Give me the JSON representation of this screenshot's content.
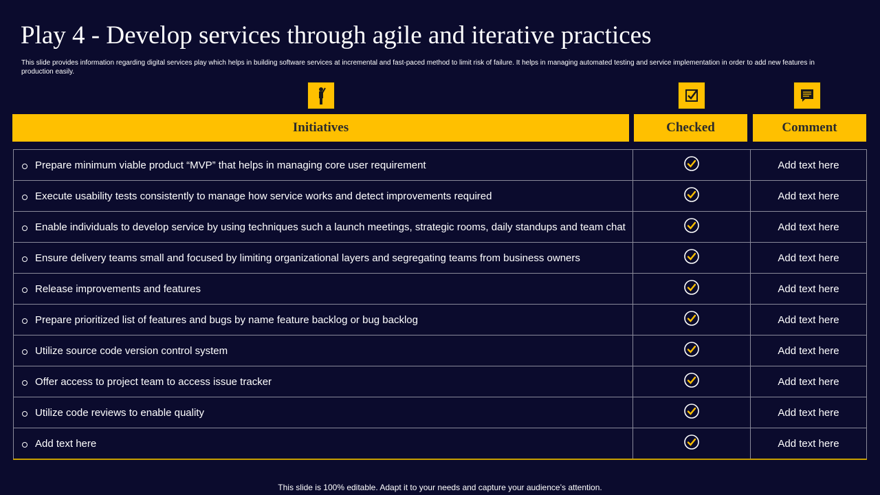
{
  "header": {
    "title": "Play 4 - Develop services through agile and iterative practices",
    "subtitle": "This slide provides information regarding digital services play which helps in building software services at incremental and fast-paced method to limit risk of failure. It helps in managing automated testing and service implementation in order to add new features in production easily."
  },
  "table": {
    "columns": [
      "Initiatives",
      "Checked",
      "Comment"
    ],
    "rows": [
      [
        "Prepare minimum viable product “MVP” that helps in managing core user requirement",
        "Add text here"
      ],
      [
        "Execute usability tests consistently to manage how service works and detect improvements required",
        "Add text here"
      ],
      [
        "Enable individuals to develop service by using techniques such a launch meetings, strategic rooms, daily standups and team chat",
        "Add text here"
      ],
      [
        "Ensure delivery teams small and focused by limiting organizational layers and segregating teams from business owners",
        "Add text here"
      ],
      [
        "Release improvements and features",
        "Add text here"
      ],
      [
        "Prepare prioritized list of features and bugs by name feature backlog or bug backlog",
        "Add text here"
      ],
      [
        "Utilize source code version control system",
        "Add text here"
      ],
      [
        "Offer access to project team to access issue tracker",
        "Add text here"
      ],
      [
        "Utilize code reviews to enable quality",
        "Add text here"
      ],
      [
        "Add text here",
        "Add text here"
      ]
    ]
  },
  "footer": "This slide is 100% editable. Adapt it to your needs and capture your audience’s attention."
}
